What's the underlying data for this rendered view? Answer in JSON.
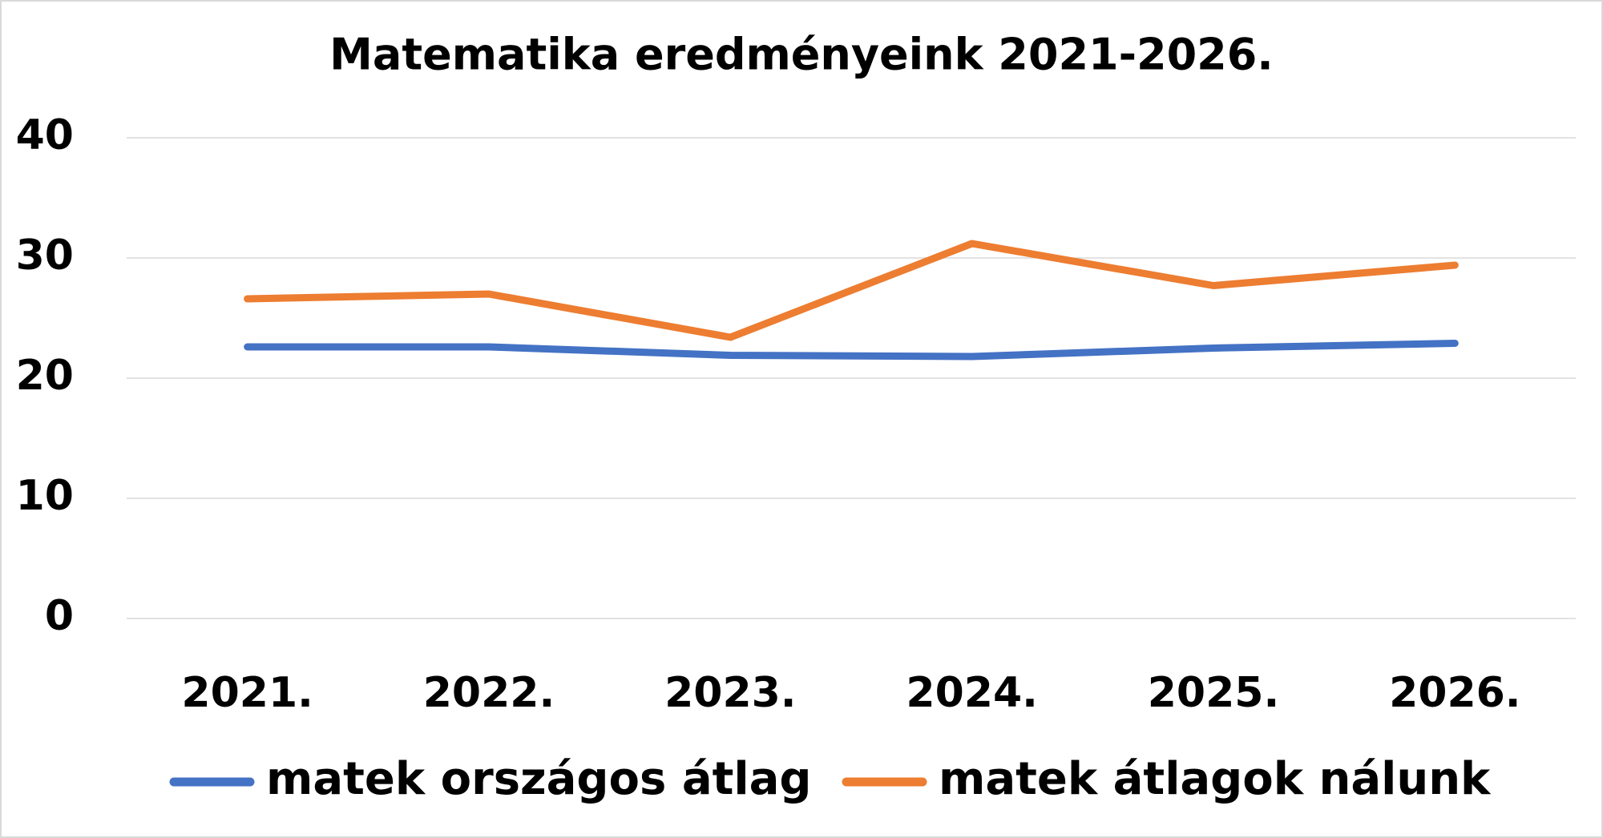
{
  "chart_data": {
    "type": "line",
    "title": "Matematika eredményeink 2021-2026.",
    "categories": [
      "2021.",
      "2022.",
      "2023.",
      "2024.",
      "2025.",
      "2026."
    ],
    "series": [
      {
        "name": "matek országos átlag",
        "color": "#4472c4",
        "values": [
          22.6,
          22.6,
          21.9,
          21.8,
          22.5,
          22.9
        ]
      },
      {
        "name": "matek átlagok nálunk",
        "color": "#ed7d31",
        "values": [
          26.6,
          27.0,
          23.4,
          31.2,
          27.7,
          29.4
        ]
      }
    ],
    "ylim": [
      0,
      40
    ],
    "yticks": [
      0,
      10,
      20,
      30,
      40
    ],
    "grid": true,
    "legend": "bottom"
  }
}
